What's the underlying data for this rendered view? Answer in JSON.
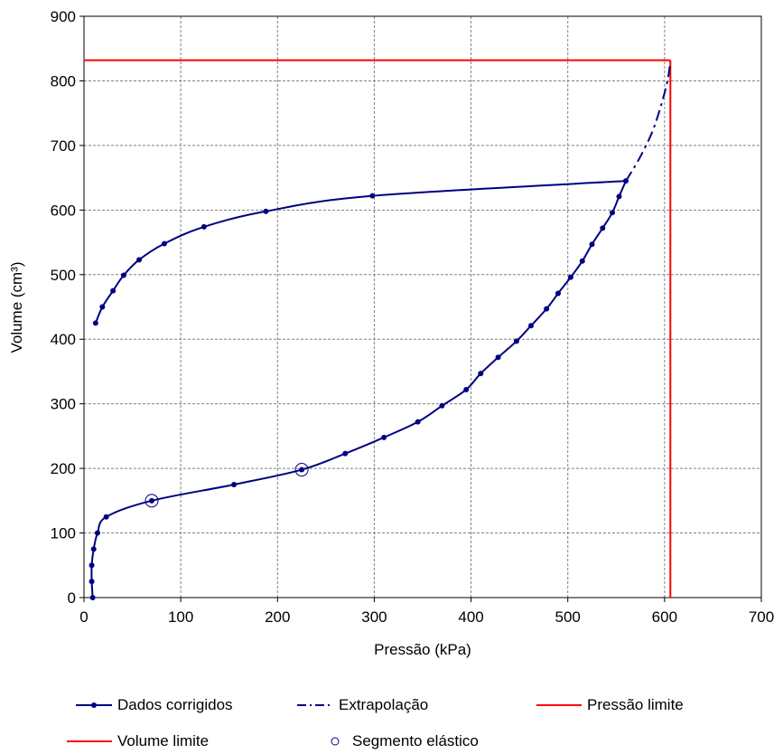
{
  "chart_data": {
    "type": "line",
    "xlabel": "Pressão (kPa)",
    "ylabel": "Volume (cm³)",
    "xlim": [
      0,
      700
    ],
    "ylim": [
      0,
      900
    ],
    "xticks": [
      "0",
      "100",
      "200",
      "300",
      "400",
      "500",
      "600",
      "700"
    ],
    "yticks": [
      "0",
      "100",
      "200",
      "300",
      "400",
      "500",
      "600",
      "700",
      "800",
      "900"
    ],
    "grid": true,
    "legend_position": "bottom",
    "series": [
      {
        "name": "Dados corrigidos",
        "color": "#000080",
        "style": "solid-with-markers",
        "loading": [
          [
            9,
            0
          ],
          [
            8,
            25
          ],
          [
            8,
            50
          ],
          [
            10,
            75
          ],
          [
            14,
            100
          ],
          [
            23,
            125
          ],
          [
            70,
            150
          ],
          [
            155,
            175
          ],
          [
            225,
            198
          ],
          [
            270,
            223
          ],
          [
            310,
            248
          ],
          [
            345,
            272
          ],
          [
            370,
            297
          ],
          [
            395,
            322
          ],
          [
            410,
            347
          ],
          [
            428,
            372
          ],
          [
            447,
            397
          ],
          [
            462,
            421
          ],
          [
            478,
            447
          ],
          [
            490,
            471
          ],
          [
            503,
            496
          ],
          [
            515,
            521
          ],
          [
            525,
            547
          ],
          [
            536,
            572
          ],
          [
            546,
            596
          ],
          [
            553,
            621
          ],
          [
            560,
            645
          ]
        ],
        "unloading": [
          [
            560,
            645
          ],
          [
            298,
            622
          ],
          [
            188,
            598
          ],
          [
            124,
            574
          ],
          [
            83,
            548
          ],
          [
            57,
            523
          ],
          [
            41,
            499
          ],
          [
            30,
            475
          ],
          [
            19,
            450
          ],
          [
            12,
            425
          ]
        ]
      },
      {
        "name": "Extrapolação",
        "color": "#000080",
        "style": "dash-dot",
        "points": [
          [
            560,
            645
          ],
          [
            574,
            680
          ],
          [
            587,
            720
          ],
          [
            596,
            760
          ],
          [
            603,
            800
          ],
          [
            606,
            830
          ]
        ]
      },
      {
        "name": "Pressão limite",
        "color": "#ff0000",
        "style": "solid",
        "x": 606,
        "y_range": [
          0,
          832
        ]
      },
      {
        "name": "Volume limite",
        "color": "#ff0000",
        "style": "solid",
        "y": 832,
        "x_range": [
          0,
          606
        ]
      },
      {
        "name": "Segmento elástico",
        "color": "#000080",
        "style": "open-circle",
        "points": [
          [
            70,
            150
          ],
          [
            225,
            198
          ]
        ]
      }
    ]
  },
  "legend": [
    {
      "label": "Dados corrigidos",
      "key": "dados"
    },
    {
      "label": "Extrapolação",
      "key": "extrap"
    },
    {
      "label": "Pressão limite",
      "key": "plim"
    },
    {
      "label": "Volume limite",
      "key": "vlim"
    },
    {
      "label": "Segmento elástico",
      "key": "seg"
    }
  ]
}
